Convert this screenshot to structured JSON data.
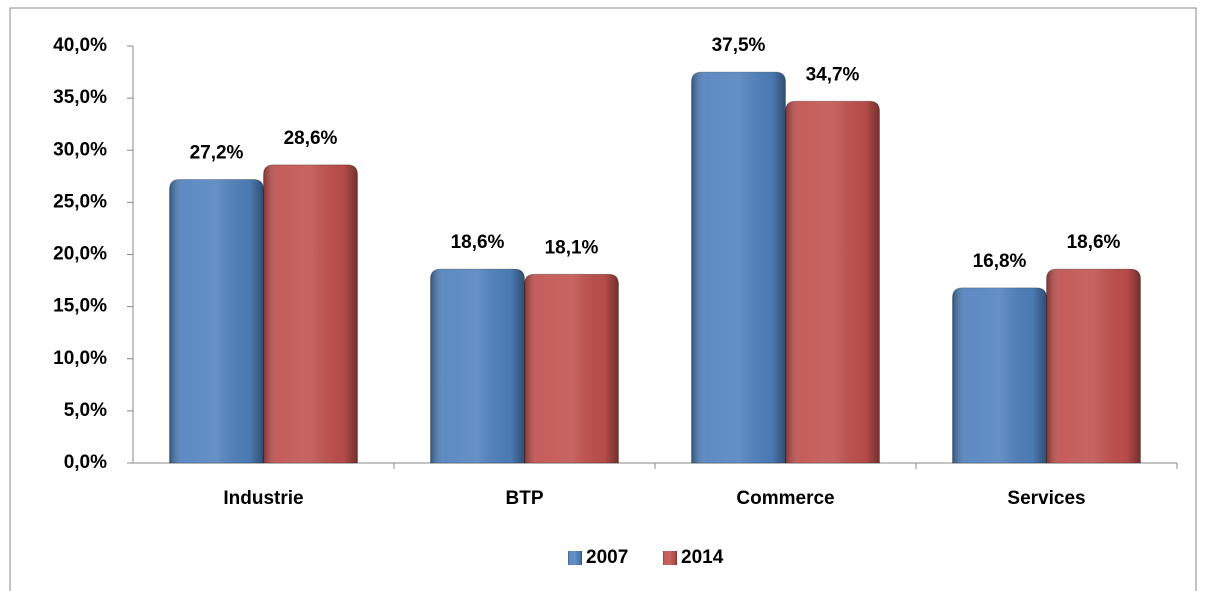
{
  "chart_data": {
    "type": "bar",
    "categories": [
      "Industrie",
      "BTP",
      "Commerce",
      "Services"
    ],
    "series": [
      {
        "name": "2007",
        "color": "#4f81bd",
        "values": [
          27.2,
          18.6,
          37.5,
          16.8
        ],
        "value_labels": [
          "27,2%",
          "18,6%",
          "37,5%",
          "16,8%"
        ]
      },
      {
        "name": "2014",
        "color": "#c0504d",
        "values": [
          28.6,
          18.1,
          34.7,
          18.6
        ],
        "value_labels": [
          "28,6%",
          "18,1%",
          "34,7%",
          "18,6%"
        ]
      }
    ],
    "ylim": [
      0,
      40
    ],
    "yticks": [
      {
        "value": 0,
        "label": "0,0%"
      },
      {
        "value": 5,
        "label": "5,0%"
      },
      {
        "value": 10,
        "label": "10,0%"
      },
      {
        "value": 15,
        "label": "15,0%"
      },
      {
        "value": 20,
        "label": "20,0%"
      },
      {
        "value": 25,
        "label": "25,0%"
      },
      {
        "value": 30,
        "label": "30,0%"
      },
      {
        "value": 35,
        "label": "35,0%"
      },
      {
        "value": 40,
        "label": "40,0%"
      }
    ],
    "grid": false,
    "legend": "bottom"
  }
}
